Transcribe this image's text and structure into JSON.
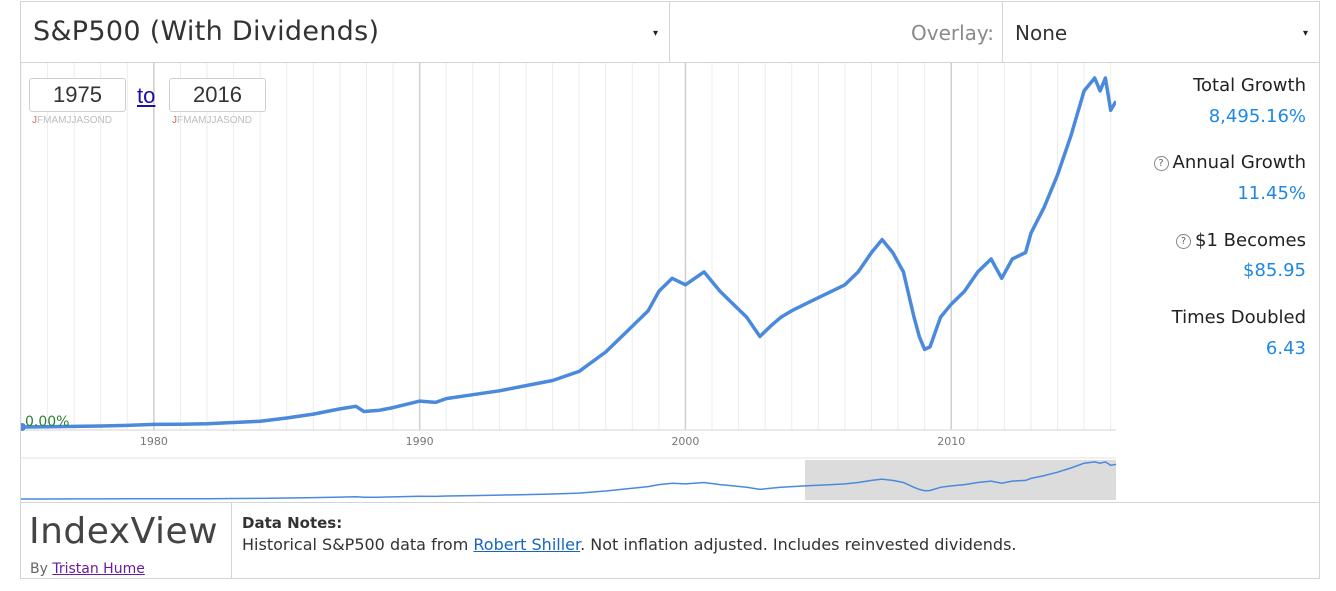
{
  "header": {
    "index_name": "S&P500 (With Dividends)",
    "overlay_label": "Overlay:",
    "overlay_value": "None"
  },
  "range": {
    "from_year": "1975",
    "to_label": "to",
    "to_year": "2016",
    "month_initials": "JFMAMJJASOND",
    "from_current_month": "J",
    "to_current_month": "J"
  },
  "chart_data": {
    "type": "line",
    "title": "",
    "xlabel": "",
    "ylabel": "",
    "start_label": "0.00%",
    "x_ticks": [
      "1980",
      "1990",
      "2000",
      "2010"
    ],
    "xlim": [
      1975.0,
      2016.2
    ],
    "grid": true,
    "line_color": "#4a89dc",
    "series": [
      {
        "x": [
          1975.0,
          1976.0,
          1977.0,
          1978.0,
          1979.0,
          1980.0,
          1981.0,
          1982.0,
          1983.0,
          1984.0,
          1985.0,
          1986.0,
          1987.0,
          1987.6,
          1987.9,
          1988.5,
          1989.0,
          1989.6,
          1990.0,
          1990.6,
          1991.0,
          1992.0,
          1993.0,
          1994.0,
          1995.0,
          1996.0,
          1997.0,
          1998.0,
          1998.6,
          1999.0,
          1999.5,
          2000.0,
          2000.7,
          2001.3,
          2001.8,
          2002.3,
          2002.8,
          2003.2,
          2003.6,
          2004.0,
          2004.5,
          2005.0,
          2005.5,
          2006.0,
          2006.5,
          2007.0,
          2007.4,
          2007.8,
          2008.2,
          2008.6,
          2008.8,
          2009.0,
          2009.2,
          2009.6,
          2010.0,
          2010.5,
          2011.0,
          2011.5,
          2011.9,
          2012.3,
          2012.8,
          2013.0,
          2013.5,
          2014.0,
          2014.5,
          2015.0,
          2015.4,
          2015.6,
          2015.8,
          2016.0,
          2016.2
        ],
        "y": [
          0,
          2,
          5,
          8,
          12,
          20,
          22,
          25,
          35,
          45,
          70,
          100,
          140,
          160,
          120,
          130,
          150,
          180,
          200,
          190,
          220,
          250,
          280,
          320,
          360,
          430,
          580,
          780,
          900,
          1050,
          1150,
          1100,
          1200,
          1050,
          950,
          850,
          700,
          780,
          850,
          900,
          950,
          1000,
          1050,
          1100,
          1200,
          1350,
          1450,
          1350,
          1200,
          850,
          700,
          600,
          620,
          850,
          950,
          1050,
          1200,
          1300,
          1150,
          1300,
          1350,
          1500,
          1700,
          1950,
          2250,
          2600,
          2700,
          2600,
          2700,
          2450,
          2520
        ]
      }
    ],
    "navigator_window": [
      2004.5,
      2016.2
    ]
  },
  "stats": {
    "total_growth_label": "Total Growth",
    "total_growth_value": "8,495.16%",
    "annual_growth_label": "Annual Growth",
    "annual_growth_value": "11.45%",
    "dollar_label": "$1 Becomes",
    "dollar_value": "$85.95",
    "doubled_label": "Times Doubled",
    "doubled_value": "6.43",
    "help_glyph": "?"
  },
  "footer": {
    "brand": "IndexView",
    "by_prefix": "By",
    "author": "Tristan Hume",
    "notes_title": "Data Notes:",
    "notes_text_1": "Historical S&P500 data from",
    "notes_link": "Robert Shiller",
    "notes_text_2": ". Not inflation adjusted. Includes reinvested dividends."
  }
}
